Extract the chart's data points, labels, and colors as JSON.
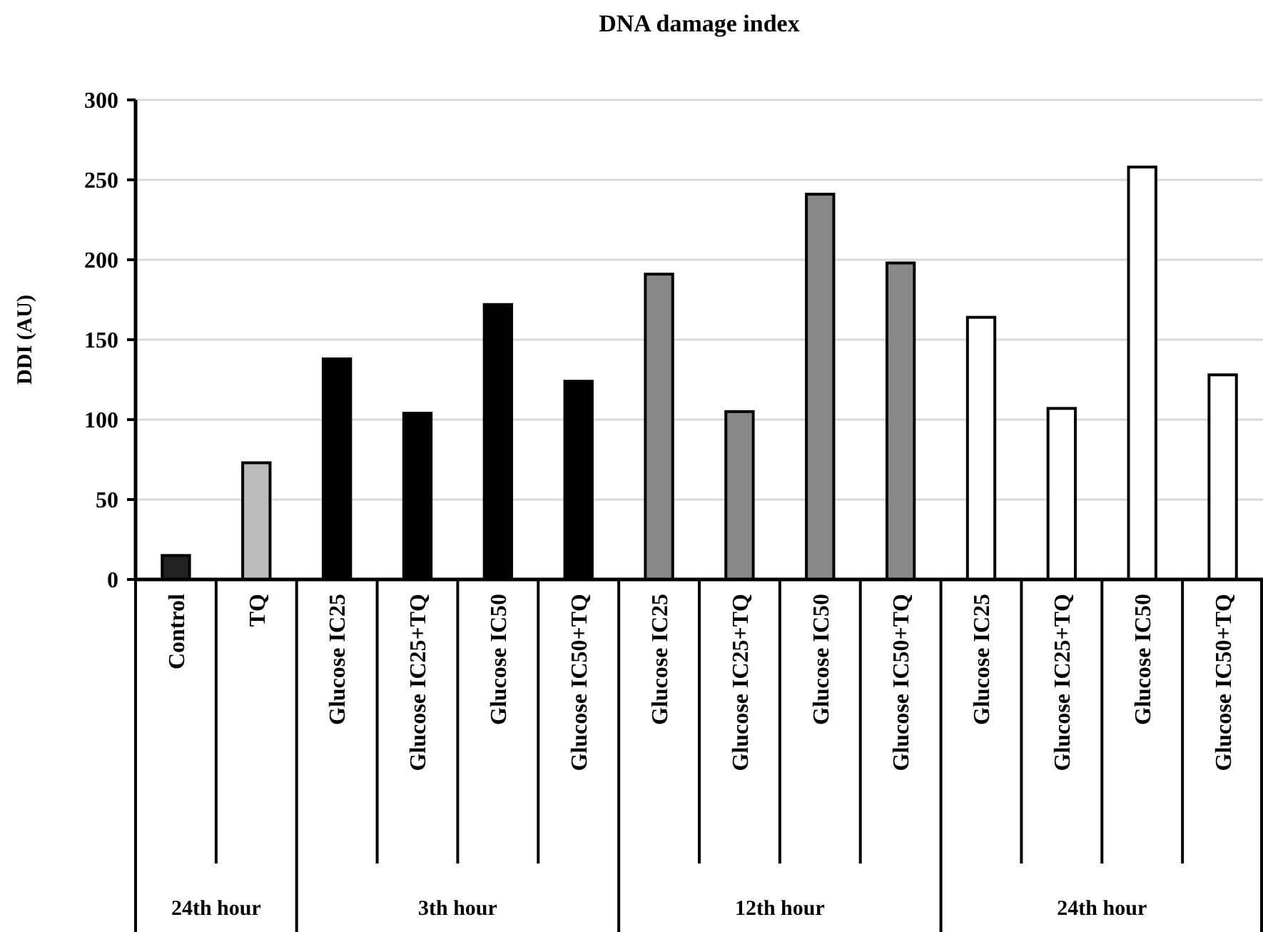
{
  "chart_data": {
    "type": "bar",
    "title": "DNA  damage index",
    "ylabel": "DDI (AU)",
    "categories": [
      "Control",
      "TQ",
      "Glucose IC25",
      "Glucose IC25+TQ",
      "Glucose IC50",
      "Glucose IC50+TQ",
      "Glucose IC25",
      "Glucose IC25+TQ",
      "Glucose IC50",
      "Glucose IC50+TQ",
      "Glucose IC25",
      "Glucose IC25+TQ",
      "Glucose IC50",
      "Glucose IC50+TQ"
    ],
    "values": [
      15,
      73,
      138,
      104,
      172,
      124,
      191,
      105,
      241,
      198,
      164,
      107,
      258,
      128
    ],
    "colors": [
      "#222222",
      "#bbbbbb",
      "#000000",
      "#000000",
      "#000000",
      "#000000",
      "#888888",
      "#888888",
      "#888888",
      "#888888",
      "#ffffff",
      "#ffffff",
      "#ffffff",
      "#ffffff"
    ],
    "ylim": [
      0,
      300
    ],
    "yticks": [
      0,
      50,
      100,
      150,
      200,
      250,
      300
    ],
    "grid": "y",
    "annotations": [
      "24th hour",
      "3th hour",
      "12th hour",
      "24th hour"
    ]
  }
}
